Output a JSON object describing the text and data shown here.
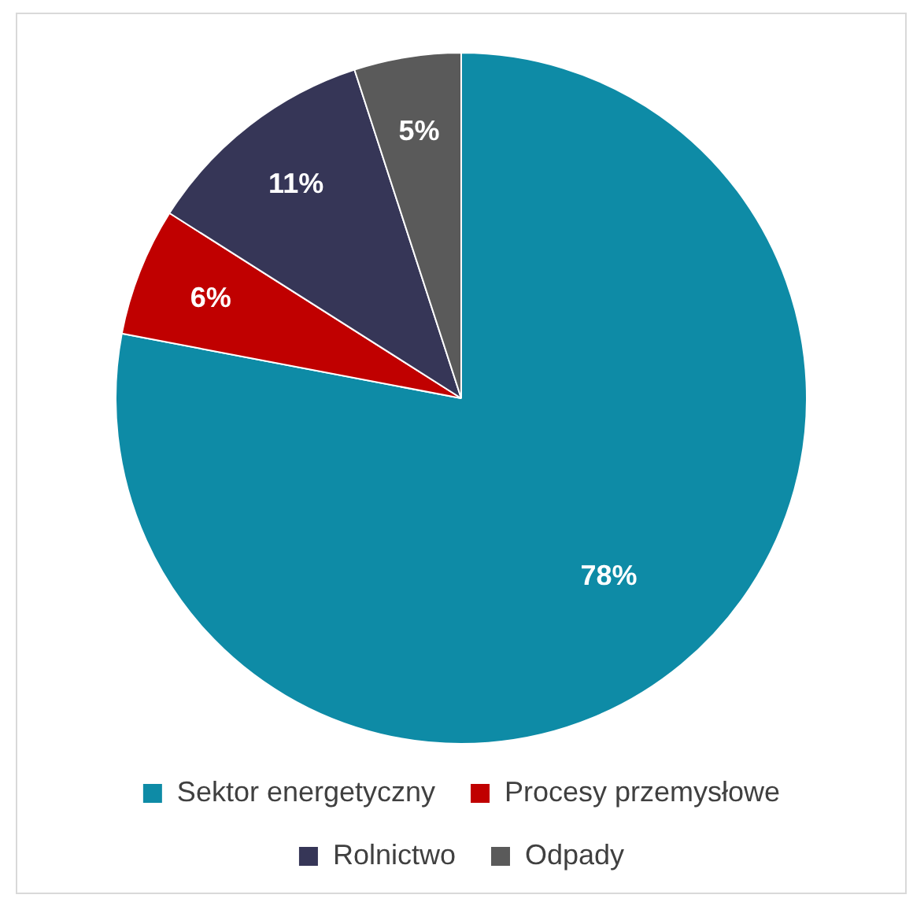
{
  "chart_data": {
    "type": "pie",
    "categories": [
      "Sektor energetyczny",
      "Procesy przemysłowe",
      "Rolnictwo",
      "Odpady"
    ],
    "values": [
      78,
      6,
      11,
      5
    ],
    "colors": [
      "#0e8ba6",
      "#c00000",
      "#363657",
      "#5a5a5a"
    ],
    "value_labels": [
      "78%",
      "6%",
      "11%",
      "5%"
    ],
    "legend": "bottom"
  }
}
